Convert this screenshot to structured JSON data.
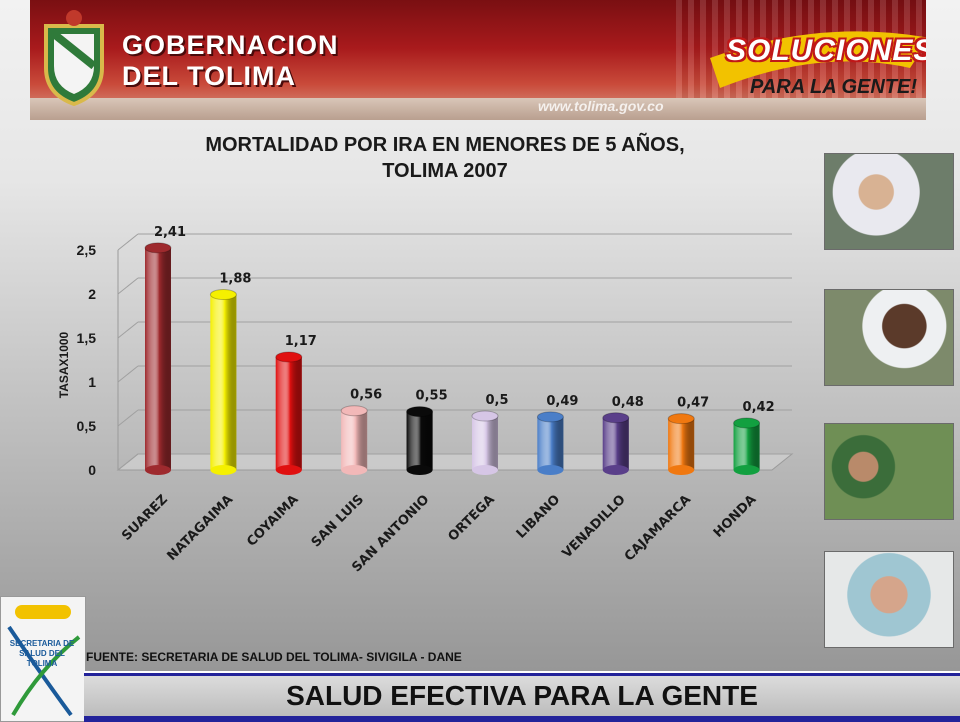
{
  "banner": {
    "title_line1": "GOBERNACION",
    "title_line2": "DEL TOLIMA",
    "url": "www.tolima.gov.co",
    "slogan_title": "SOLUCIONES",
    "slogan_sub": "PARA LA GENTE!"
  },
  "chart_data": {
    "type": "bar",
    "title_line1": "MORTALIDAD POR IRA EN MENORES DE 5 AÑOS,",
    "title_line2": "TOLIMA 2007",
    "ylabel": "TASAX1000",
    "xlabel": "",
    "ylim": [
      0,
      2.5
    ],
    "yticks": [
      "0",
      "0,5",
      "1",
      "1,5",
      "2",
      "2,5"
    ],
    "categories": [
      "SUAREZ",
      "NATAGAIMA",
      "COYAIMA",
      "SAN LUIS",
      "SAN ANTONIO",
      "ORTEGA",
      "LIBANO",
      "VENADILLO",
      "CAJAMARCA",
      "HONDA"
    ],
    "values": [
      2.41,
      1.88,
      1.17,
      0.56,
      0.55,
      0.5,
      0.49,
      0.48,
      0.47,
      0.42
    ],
    "value_labels": [
      "2,41",
      "1,88",
      "1,17",
      "0,56",
      "0,55",
      "0,5",
      "0,49",
      "0,48",
      "0,47",
      "0,42"
    ],
    "colors": [
      "#9e2a2e",
      "#f5f000",
      "#e01010",
      "#f2b8b8",
      "#0a0a0a",
      "#d6c6e6",
      "#4a7ec8",
      "#5a3f8a",
      "#f07810",
      "#12a040"
    ],
    "grid": true,
    "style": "3d-cylinder"
  },
  "source": "FUENTE: SECRETARIA DE SALUD DEL TOLIMA- SIVIGILA - DANE",
  "footer": "SALUD EFECTIVA PARA LA GENTE",
  "logo": {
    "text": "SECRETARIA DE SALUD DEL TOLIMA"
  }
}
